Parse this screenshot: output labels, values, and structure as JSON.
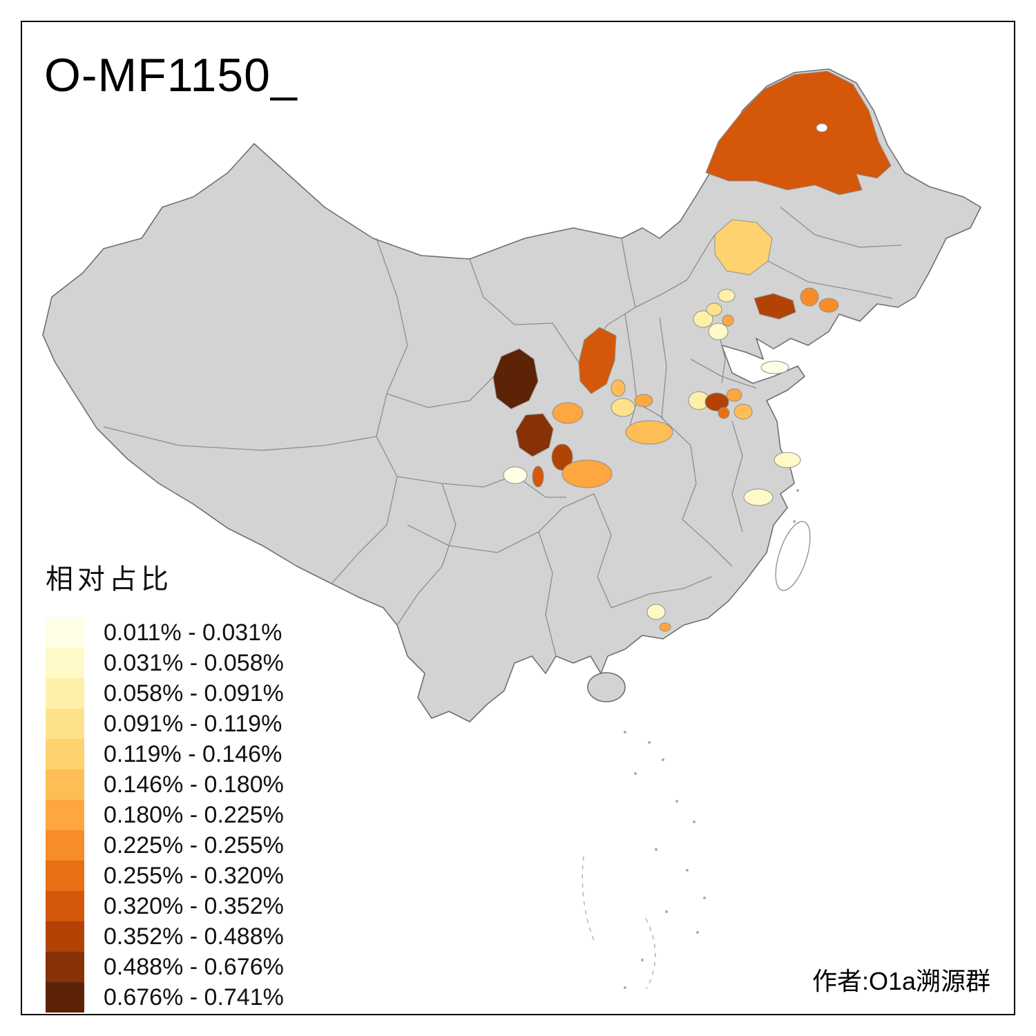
{
  "title": "O-MF1150_",
  "attribution": "作者:O1a溯源群",
  "legend": {
    "title": "相对占比",
    "bins": [
      {
        "label": "0.011% - 0.031%",
        "color": "#FFFFE5"
      },
      {
        "label": "0.031% - 0.058%",
        "color": "#FFF9C8"
      },
      {
        "label": "0.058% - 0.091%",
        "color": "#FEF0A9"
      },
      {
        "label": "0.091% - 0.119%",
        "color": "#FEE28B"
      },
      {
        "label": "0.119% - 0.146%",
        "color": "#FED26F"
      },
      {
        "label": "0.146% - 0.180%",
        "color": "#FEBD55"
      },
      {
        "label": "0.180% - 0.225%",
        "color": "#FEA63F"
      },
      {
        "label": "0.225% - 0.255%",
        "color": "#F78D28"
      },
      {
        "label": "0.255% - 0.320%",
        "color": "#E86F14"
      },
      {
        "label": "0.320% - 0.352%",
        "color": "#D4570A"
      },
      {
        "label": "0.352% - 0.488%",
        "color": "#B24304"
      },
      {
        "label": "0.488% - 0.676%",
        "color": "#873106"
      },
      {
        "label": "0.676% - 0.741%",
        "color": "#5C2307"
      }
    ]
  },
  "map": {
    "land_fill": "#D3D3D3",
    "regions": [
      {
        "bin": 9
      },
      {
        "bin": 4
      },
      {
        "bin": 10
      },
      {
        "bin": 7
      },
      {
        "bin": 7
      },
      {
        "bin": 2
      },
      {
        "bin": 1
      },
      {
        "bin": 3
      },
      {
        "bin": 6
      },
      {
        "bin": 2
      },
      {
        "bin": 9
      },
      {
        "bin": 5
      },
      {
        "bin": 12
      },
      {
        "bin": 11
      },
      {
        "bin": 10
      },
      {
        "bin": 6
      },
      {
        "bin": 3
      },
      {
        "bin": 6
      },
      {
        "bin": 5
      },
      {
        "bin": 2
      },
      {
        "bin": 10
      },
      {
        "bin": 6
      },
      {
        "bin": 5
      },
      {
        "bin": 8
      },
      {
        "bin": 0
      },
      {
        "bin": 0
      },
      {
        "bin": 9
      },
      {
        "bin": 6
      },
      {
        "bin": 1
      },
      {
        "bin": 1
      },
      {
        "bin": 1
      },
      {
        "bin": 6
      }
    ]
  }
}
